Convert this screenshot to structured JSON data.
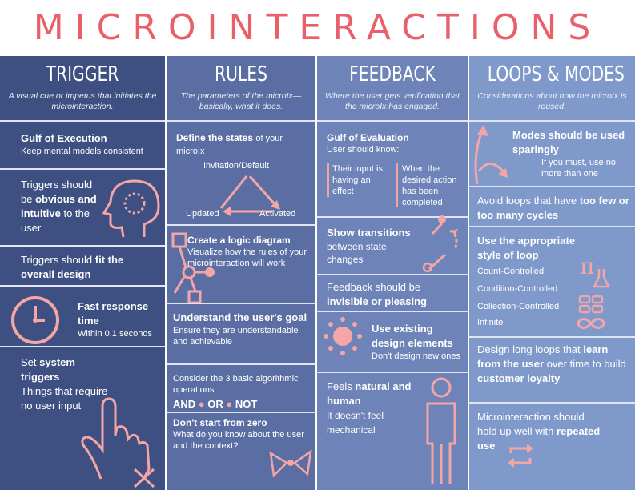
{
  "title": "MICROINTERACTIONS",
  "colors": {
    "accent": "#e8606a",
    "pink": "#f4a6a6",
    "col1": "#3e4f82",
    "col2": "#5a6ea3",
    "col3": "#6e83b8",
    "col4": "#8099cb"
  },
  "trigger": {
    "heading": "TRIGGER",
    "subtitle": "A visual cue or impetus that initiates the microinteraction.",
    "gulf_title": "Gulf of Execution",
    "gulf_text": "Keep mental models consistent",
    "obvious_1": "Triggers should be",
    "obvious_b": "obvious and intuitive",
    "obvious_2": "to the user",
    "fit_1": "Triggers should",
    "fit_b": "fit the overall design",
    "fast_b": "Fast response time",
    "fast_text": "Within 0.1 seconds",
    "system_1": "Set",
    "system_b": "system triggers",
    "system_text": "Things that require no user input"
  },
  "rules": {
    "heading": "RULES",
    "subtitle": "The parameters of the microIx— basically, what it does.",
    "define_b": "Define the states",
    "define_text": "of your microIx",
    "state_invitation": "Invitation/Default",
    "state_updated": "Updated",
    "state_activated": "Activated",
    "logic_b": "Create a logic diagram",
    "logic_text": "Visualize how the rules of your microinteraction will work",
    "understand_b": "Understand the user's goal",
    "understand_text": "Ensure they are understandable and achievable",
    "ops_text": "Consider the 3 basic algorithmic operations",
    "op_and": "AND",
    "op_or": "OR",
    "op_not": "NOT",
    "zero_b": "Don't start from zero",
    "zero_text": "What do you know about the user and the context?"
  },
  "feedback": {
    "heading": "FEEDBACK",
    "subtitle": "Where the user gets verification that the microIx has engaged.",
    "gulf_title": "Gulf of Evaluation",
    "gulf_text": "User should know:",
    "know_1": "Their input is having an effect",
    "know_2": "When the desired action has been completed",
    "transitions_b": "Show transitions",
    "transitions_text": "between state changes",
    "invisible_1": "Feedback should be",
    "invisible_b": "invisible or pleasing",
    "existing_b": "Use existing design elements",
    "existing_text": "Don't design new ones",
    "natural_1": "Feels",
    "natural_b": "natural and human",
    "natural_text": "It doesn't feel mechanical"
  },
  "loops": {
    "heading": "LOOPS & MODES",
    "subtitle": "Considerations about how the microIx is reused.",
    "modes_b": "Modes should be used sparingly",
    "modes_text": "If you must, use no more than one",
    "avoid_1": "Avoid loops that have",
    "avoid_b": "too few or too many cycles",
    "style_b": "Use the appropriate style of loop",
    "loop_types": [
      "Count-Controlled",
      "Condition-Controlled",
      "Collection-Controlled",
      "Infinite"
    ],
    "learn_1": "Design long loops that",
    "learn_b": "learn from the user",
    "learn_2": "over time to build",
    "learn_b2": "customer loyalty",
    "repeated_1": "Microinteraction should hold up well with",
    "repeated_b": "repeated use"
  }
}
